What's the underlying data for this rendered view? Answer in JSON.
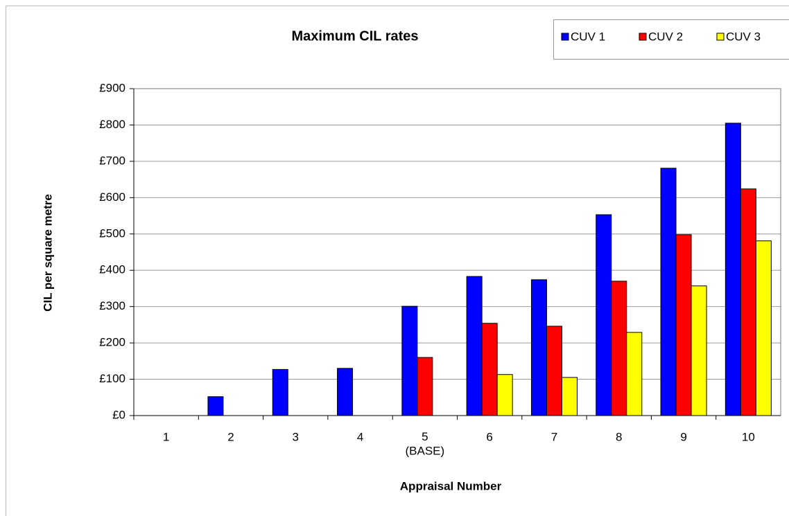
{
  "chart_data": {
    "type": "bar",
    "title": "Maximum CIL rates",
    "x_label": "Appraisal Number",
    "y_label": "CIL per square metre",
    "categories": [
      "1",
      "2",
      "3",
      "4",
      "5\n(BASE)",
      "6",
      "7",
      "8",
      "9",
      "10"
    ],
    "series": [
      {
        "name": "CUV 1",
        "color": "#0000ff",
        "values": [
          0,
          52,
          127,
          130,
          301,
          383,
          374,
          553,
          681,
          805
        ]
      },
      {
        "name": "CUV 2",
        "color": "#ff0000",
        "values": [
          0,
          0,
          0,
          0,
          160,
          254,
          246,
          370,
          498,
          624
        ]
      },
      {
        "name": "CUV 3",
        "color": "#ffff00",
        "values": [
          0,
          0,
          0,
          0,
          0,
          113,
          105,
          229,
          357,
          481
        ]
      }
    ],
    "ylim": [
      0,
      900
    ],
    "yticks": [
      {
        "value": 0,
        "label": "£0"
      },
      {
        "value": 100,
        "label": "£100"
      },
      {
        "value": 200,
        "label": "£200"
      },
      {
        "value": 300,
        "label": "£300"
      },
      {
        "value": 400,
        "label": "£400"
      },
      {
        "value": 500,
        "label": "£500"
      },
      {
        "value": 600,
        "label": "£600"
      },
      {
        "value": 700,
        "label": "£700"
      },
      {
        "value": 800,
        "label": "£800"
      },
      {
        "value": 900,
        "label": "£900"
      }
    ],
    "grid": true,
    "legend": "top-right"
  }
}
